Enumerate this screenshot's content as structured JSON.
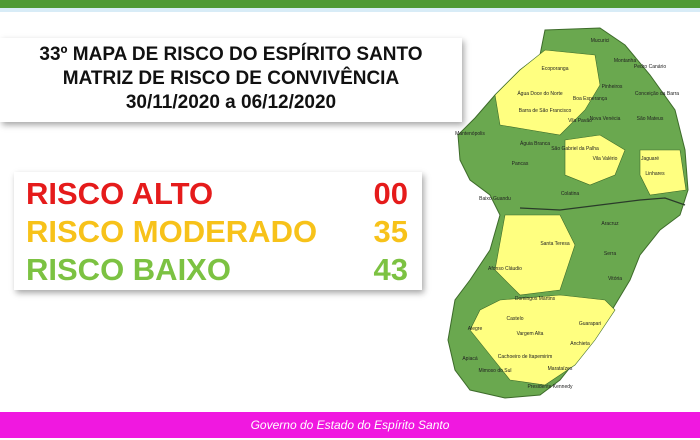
{
  "header": {
    "title_lines": [
      "33º MAPA DE RISCO DO ESPÍRITO SANTO",
      "MATRIZ DE RISCO DE CONVIVÊNCIA",
      "30/11/2020 a 06/12/2020"
    ]
  },
  "risk": [
    {
      "label": "RISCO ALTO",
      "count": "00",
      "color": "#e51b1b"
    },
    {
      "label": "RISCO MODERADO",
      "count": "35",
      "color": "#f7c21a"
    },
    {
      "label": "RISCO BAIXO",
      "count": "43",
      "color": "#7cc242"
    }
  ],
  "map": {
    "labels": [
      "Mucurici",
      "Montanha",
      "Pedro Canário",
      "Ecoporanga",
      "Pinheiros",
      "Conceição da Barra",
      "Água Doce do Norte",
      "Barra de São Francisco",
      "Boa Esperança",
      "São Mateus",
      "Nova Venécia",
      "Vila Pavão",
      "Mantenópolis",
      "Águia Branca",
      "São Gabriel da Palha",
      "Vila Valério",
      "Jaguaré",
      "Pancas",
      "Colatina",
      "Linhares",
      "Baixo Guandu",
      "Aracruz",
      "Santa Teresa",
      "Serra",
      "Afonso Cláudio",
      "Domingos Martins",
      "Vitória",
      "Guarapari",
      "Castelo",
      "Alegre",
      "Vargem Alta",
      "Anchieta",
      "Cachoeiro de Itapemirim",
      "Marataízes",
      "Presidente Kennedy",
      "Mimoso do Sul",
      "Apiacá"
    ]
  },
  "footer": "Governo do Estado do Espírito Santo"
}
